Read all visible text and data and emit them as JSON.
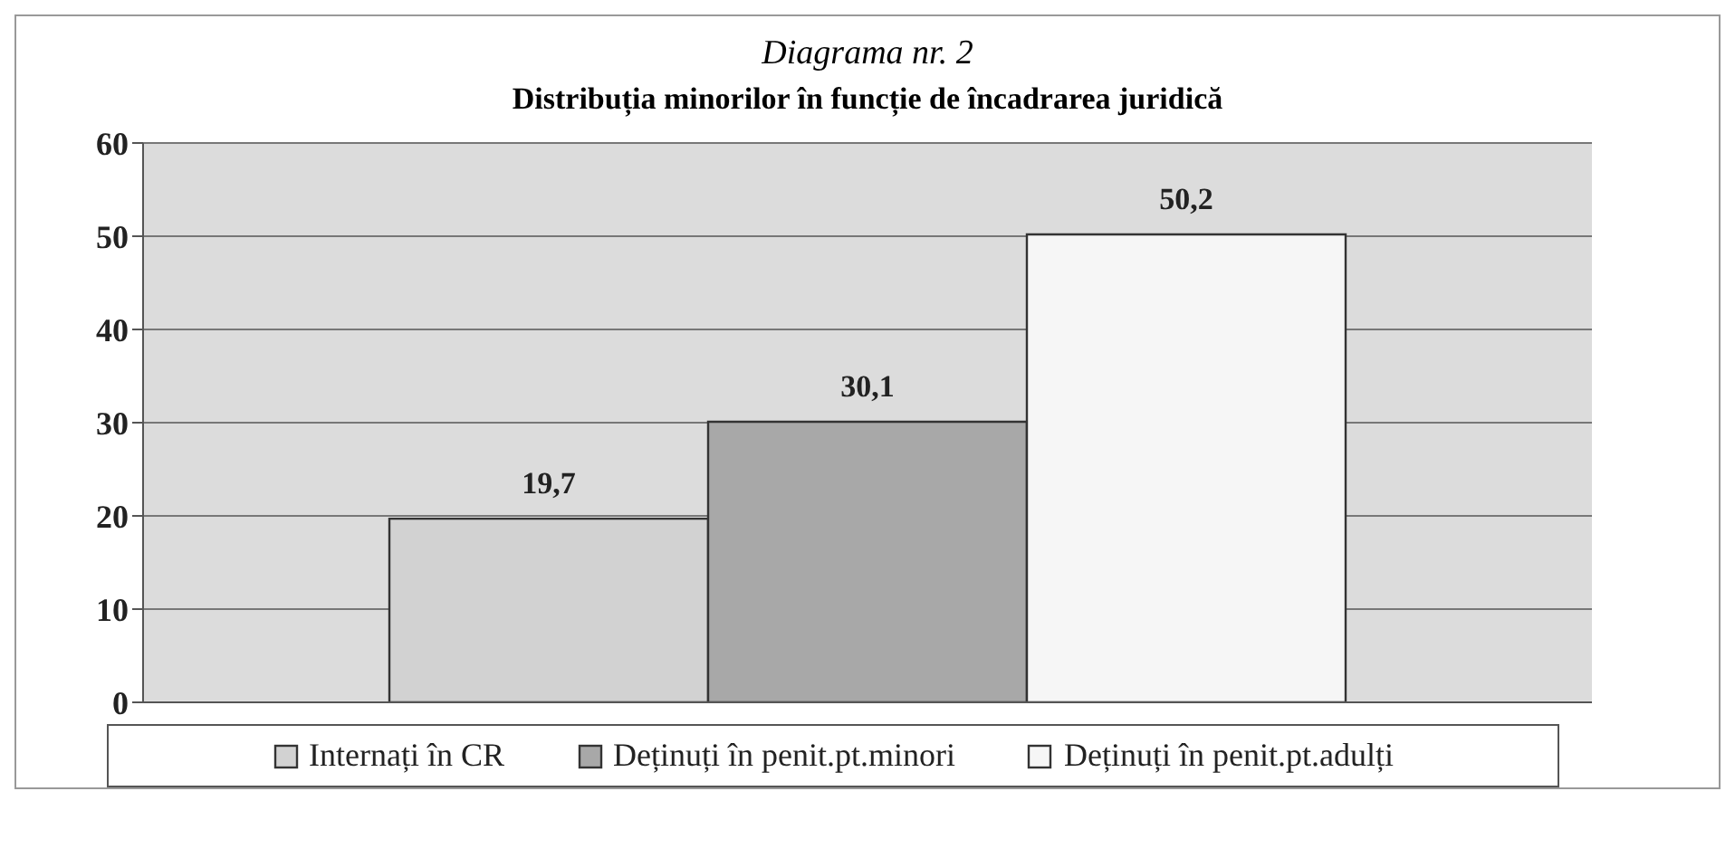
{
  "chart_data": {
    "type": "bar",
    "title": "Diagrama nr. 2",
    "subtitle": "Distribuția minorilor în funcție de încadrarea juridică",
    "categories": [
      null
    ],
    "series": [
      {
        "name": "Internați în CR",
        "color": "#d2d2d2",
        "values": [
          19.7
        ],
        "value_labels": [
          "19,7"
        ]
      },
      {
        "name": "Deținuți în penit.pt.minori",
        "color": "#a8a8a8",
        "values": [
          30.1
        ],
        "value_labels": [
          "30,1"
        ]
      },
      {
        "name": "Deținuți în penit.pt.adulți",
        "color": "#f6f6f6",
        "values": [
          50.2
        ],
        "value_labels": [
          "50,2"
        ]
      }
    ],
    "ylim": [
      0,
      60
    ],
    "yticks": [
      0,
      10,
      20,
      30,
      40,
      50,
      60
    ],
    "grid": "y",
    "legend": "bottom"
  }
}
